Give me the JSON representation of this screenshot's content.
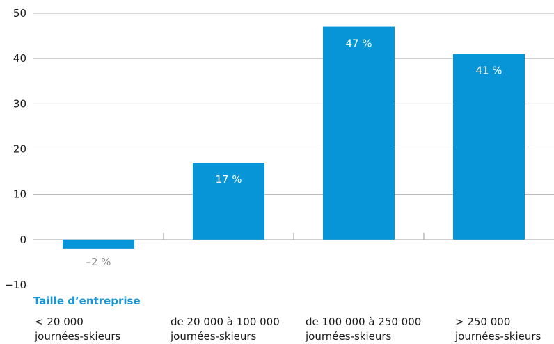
{
  "chart_data": {
    "type": "bar",
    "categories": [
      [
        "< 20 000",
        "journées-skieurs"
      ],
      [
        "de 20 000 à 100 000",
        "journées-skieurs"
      ],
      [
        "de 100 000 à 250 000",
        "journées-skieurs"
      ],
      [
        "> 250 000",
        "journées-skieurs"
      ]
    ],
    "values": [
      -2,
      17,
      47,
      41
    ],
    "data_labels": [
      "–2 %",
      "17 %",
      "47 %",
      "41 %"
    ],
    "xlabel": "Taille d’entreprise",
    "ylabel": "",
    "ylim": [
      -10,
      50
    ],
    "yticks": [
      -10,
      0,
      10,
      20,
      30,
      40,
      50
    ],
    "grid": "horizontal",
    "colors": {
      "bar": "#0895d8",
      "grid": "#b3b3b3",
      "axis_title": "#1a96d6",
      "negative_label": "#8c8c8c"
    }
  }
}
